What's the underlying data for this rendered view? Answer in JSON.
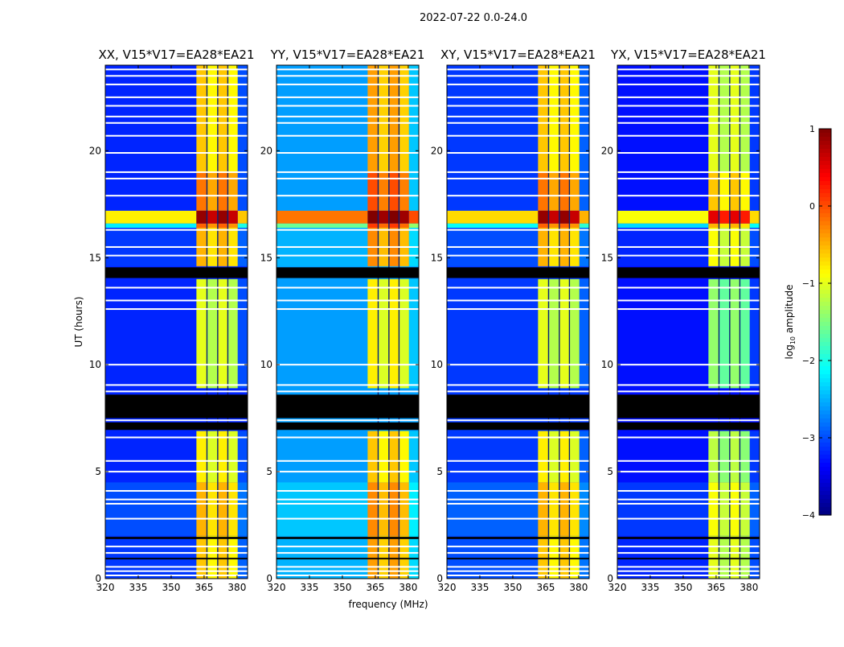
{
  "chart_data": {
    "type": "heatmap",
    "title": "2022-07-22 0.0-24.0",
    "xlabel": "frequency (MHz)",
    "ylabel": "UT (hours)",
    "xlim": [
      320,
      384.8
    ],
    "ylim": [
      0,
      24
    ],
    "xticks": [
      "320",
      "335",
      "350",
      "365",
      "380"
    ],
    "xtick_values": [
      320,
      335,
      350,
      365,
      380
    ],
    "yticks": [
      "0",
      "5",
      "10",
      "15",
      "20"
    ],
    "ytick_values": [
      0,
      5,
      10,
      15,
      20
    ],
    "colorbar": {
      "label_main": "log",
      "label_sub": "10",
      "label_rest": " amplitude",
      "range": [
        -4,
        1
      ],
      "ticks": [
        "1",
        "0",
        "−1",
        "−2",
        "−3",
        "−4"
      ],
      "tick_values": [
        1,
        0,
        -1,
        -2,
        -3,
        -4
      ],
      "colormap": "jet"
    },
    "panels": [
      {
        "title": "XX, V15*V17=EA28*EA21",
        "background_log_amp": -3.2,
        "band_offset": 0.0
      },
      {
        "title": "YY, V15*V17=EA28*EA21",
        "background_log_amp": -2.6,
        "band_offset": 0.2
      },
      {
        "title": "XY, V15*V17=EA28*EA21",
        "background_log_amp": -3.1,
        "band_offset": 0.0
      },
      {
        "title": "YX, V15*V17=EA28*EA21",
        "background_log_amp": -3.3,
        "band_offset": -0.4
      }
    ],
    "rfi_band_mhz": [
      361.5,
      380.3
    ],
    "subband_edges_mhz": [
      366.3,
      371.2,
      375.8
    ],
    "time_segments": [
      {
        "t": [
          0,
          2
        ],
        "bg_offset": 0.1,
        "band": -0.6
      },
      {
        "t": [
          2,
          4.5
        ],
        "bg_offset": 0.2,
        "band": -0.5
      },
      {
        "t": [
          4.5,
          6.9
        ],
        "bg_offset": 0.0,
        "band": -0.8
      },
      {
        "t": [
          8.9,
          14.0
        ],
        "bg_offset": 0.0,
        "band": -1.0
      },
      {
        "t": [
          14.6,
          16.4
        ],
        "bg_offset": 0.1,
        "band": -0.5
      },
      {
        "t": [
          16.4,
          16.6
        ],
        "bg_offset": 1.0,
        "band": -0.1
      },
      {
        "t": [
          16.6,
          17.2
        ],
        "bg_offset": 2.4,
        "band": 0.9
      },
      {
        "t": [
          17.2,
          19.0
        ],
        "bg_offset": 0.0,
        "band": -0.2
      },
      {
        "t": [
          19.0,
          24.0
        ],
        "bg_offset": 0.0,
        "band": -0.6
      }
    ],
    "flagged_black": [
      [
        14.05,
        14.55
      ],
      [
        6.95,
        7.3
      ],
      [
        7.5,
        8.6
      ],
      [
        1.85,
        1.95
      ],
      [
        0.9,
        0.97
      ]
    ],
    "flagged_white": [
      0.15,
      0.35,
      0.55,
      1.2,
      1.5,
      2.8,
      3.5,
      3.7,
      4.1,
      5.0,
      5.5,
      6.6,
      7.4,
      8.75,
      9.05,
      10.0,
      12.6,
      13.0,
      13.6,
      15.1,
      15.5,
      16.3,
      17.9,
      18.7,
      19.0,
      19.9,
      20.7,
      21.3,
      21.6,
      22.1,
      22.5,
      23.1,
      23.5,
      23.8
    ]
  }
}
